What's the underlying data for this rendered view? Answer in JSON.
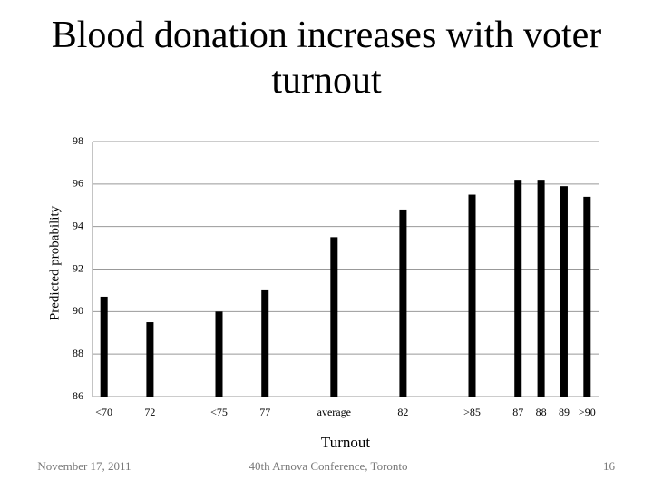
{
  "chart_data": {
    "type": "bar",
    "title": "Blood donation increases with voter turnout",
    "y_label": "Predicted probability",
    "x_label": "Turnout",
    "categories": [
      "<70",
      null,
      "72",
      null,
      null,
      "<75",
      null,
      "77",
      null,
      null,
      "average",
      null,
      null,
      "82",
      null,
      null,
      ">85",
      null,
      "87",
      "88",
      "89",
      ">90"
    ],
    "values": [
      90.7,
      null,
      89.5,
      null,
      null,
      90.0,
      null,
      91.0,
      null,
      null,
      93.5,
      null,
      null,
      94.8,
      null,
      null,
      95.5,
      null,
      96.2,
      96.2,
      95.9,
      95.4
    ],
    "color": "#000000",
    "ylim": [
      86,
      98
    ],
    "yticks": [
      86,
      88,
      90,
      92,
      94,
      96,
      98
    ],
    "grid": true
  },
  "footer": {
    "date": "November 17, 2011",
    "event": "40th Arnova Conference, Toronto",
    "page": "16"
  }
}
